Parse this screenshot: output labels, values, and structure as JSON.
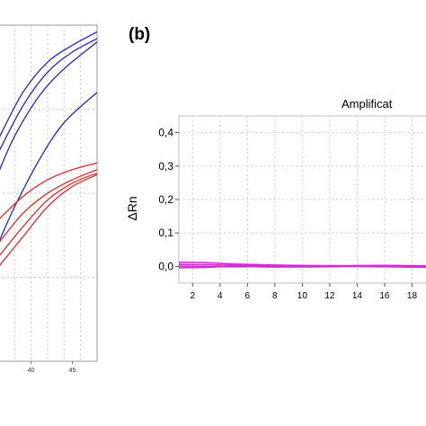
{
  "chart_data": [
    {
      "type": "line",
      "title": "",
      "xlabel": "",
      "ylabel": "",
      "xlim": [
        36,
        48
      ],
      "ylim": [
        0,
        1
      ],
      "x_ticks": [
        40,
        45
      ],
      "grid": true,
      "series": [
        {
          "color": "#2f37b8",
          "points": [
            [
              36,
              0.66
            ],
            [
              39,
              0.8
            ],
            [
              42,
              0.89
            ],
            [
              45,
              0.94
            ],
            [
              48,
              0.98
            ]
          ]
        },
        {
          "color": "#2f37b8",
          "points": [
            [
              36,
              0.62
            ],
            [
              39,
              0.76
            ],
            [
              42,
              0.86
            ],
            [
              45,
              0.92
            ],
            [
              48,
              0.96
            ]
          ]
        },
        {
          "color": "#2f37b8",
          "points": [
            [
              36,
              0.56
            ],
            [
              38,
              0.67
            ],
            [
              41,
              0.79
            ],
            [
              44,
              0.87
            ],
            [
              48,
              0.95
            ]
          ]
        },
        {
          "color": "#2f37b8",
          "points": [
            [
              36,
              0.35
            ],
            [
              38,
              0.46
            ],
            [
              41,
              0.6
            ],
            [
              44,
              0.71
            ],
            [
              48,
              0.8
            ]
          ]
        },
        {
          "color": "#d43a3a",
          "points": [
            [
              36,
              0.42
            ],
            [
              39,
              0.49
            ],
            [
              42,
              0.54
            ],
            [
              45,
              0.57
            ],
            [
              48,
              0.59
            ]
          ]
        },
        {
          "color": "#d43a3a",
          "points": [
            [
              36,
              0.35
            ],
            [
              39,
              0.44
            ],
            [
              42,
              0.5
            ],
            [
              45,
              0.54
            ],
            [
              48,
              0.57
            ]
          ]
        },
        {
          "color": "#d43a3a",
          "points": [
            [
              36,
              0.31
            ],
            [
              39,
              0.4
            ],
            [
              42,
              0.48
            ],
            [
              45,
              0.53
            ],
            [
              48,
              0.56
            ]
          ]
        },
        {
          "color": "#d43a3a",
          "points": [
            [
              36,
              0.28
            ],
            [
              39,
              0.37
            ],
            [
              42,
              0.46
            ],
            [
              45,
              0.52
            ],
            [
              48,
              0.555
            ]
          ]
        }
      ]
    },
    {
      "type": "line",
      "panel_label": "(b)",
      "title": "Amplificat",
      "xlabel": "",
      "ylabel": "ΔRn",
      "xlim": [
        1,
        20
      ],
      "ylim": [
        -0.05,
        0.45
      ],
      "x_ticks": [
        "2",
        "4",
        "6",
        "8",
        "10",
        "12",
        "14",
        "16",
        "18"
      ],
      "y_ticks": [
        "0,4",
        "0,3",
        "0,2",
        "0,1",
        "0,0"
      ],
      "y_tick_values": [
        0.4,
        0.3,
        0.2,
        0.1,
        0.0
      ],
      "grid": true,
      "series": [
        {
          "color": "#d62ad6",
          "points": [
            [
              1,
              0.012
            ],
            [
              3,
              0.011
            ],
            [
              5,
              0.007
            ],
            [
              8,
              0.004
            ],
            [
              12,
              0.002
            ],
            [
              16,
              0.003
            ],
            [
              20,
              0.0
            ]
          ]
        },
        {
          "color": "#d62ad6",
          "points": [
            [
              1,
              0.006
            ],
            [
              3,
              0.005
            ],
            [
              5,
              0.003
            ],
            [
              8,
              0.002
            ],
            [
              12,
              0.0
            ],
            [
              16,
              -0.001
            ],
            [
              20,
              -0.003
            ]
          ]
        },
        {
          "color": "#d62ad6",
          "points": [
            [
              1,
              0.001
            ],
            [
              3,
              0.0
            ],
            [
              5,
              -0.001
            ],
            [
              8,
              0.0
            ],
            [
              12,
              0.001
            ],
            [
              16,
              0.0
            ],
            [
              20,
              -0.002
            ]
          ]
        },
        {
          "color": "#d62ad6",
          "points": [
            [
              1,
              -0.004
            ],
            [
              3,
              -0.003
            ],
            [
              5,
              0.0
            ],
            [
              8,
              -0.002
            ],
            [
              12,
              -0.001
            ],
            [
              16,
              0.002
            ],
            [
              20,
              0.001
            ]
          ]
        }
      ]
    }
  ]
}
